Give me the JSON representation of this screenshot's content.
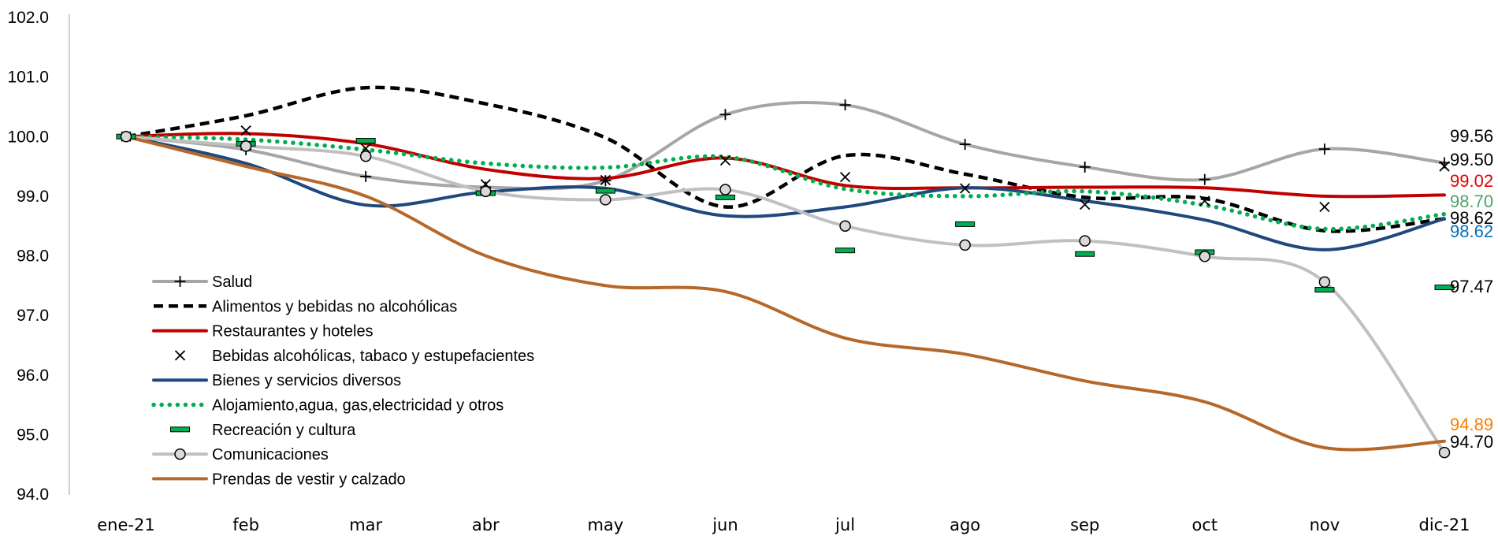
{
  "chart_data": {
    "type": "line",
    "title": "",
    "xlabel": "",
    "ylabel": "",
    "categories": [
      "ene-21",
      "feb",
      "mar",
      "abr",
      "may",
      "jun",
      "jul",
      "ago",
      "sep",
      "oct",
      "nov",
      "dic-21"
    ],
    "yticks": [
      "102.0",
      "101.0",
      "100.0",
      "99.0",
      "98.0",
      "97.0",
      "96.0",
      "95.0",
      "94.0"
    ],
    "ylim": [
      94,
      102
    ],
    "grid": false,
    "legend_position": "bottom-left",
    "series": [
      {
        "name": "Salud",
        "style": "line-marker",
        "marker": "plus",
        "color": "#a6a6a6",
        "values": [
          100.0,
          99.78,
          99.33,
          99.15,
          99.26,
          100.37,
          100.53,
          99.87,
          99.49,
          99.28,
          99.79,
          99.56
        ],
        "end_label": "99.56",
        "end_label_color": "#000000"
      },
      {
        "name": "Alimentos y bebidas no alcohólicas",
        "style": "dashed",
        "color": "#000000",
        "values": [
          100.0,
          100.35,
          100.82,
          100.55,
          99.98,
          98.82,
          99.68,
          99.37,
          98.98,
          98.96,
          98.42,
          98.62
        ],
        "end_label": "98.62",
        "end_label_color": "#000000"
      },
      {
        "name": "Restaurantes y hoteles",
        "style": "line",
        "color": "#c00000",
        "values": [
          100.0,
          100.05,
          99.88,
          99.45,
          99.3,
          99.64,
          99.18,
          99.14,
          99.15,
          99.14,
          99.0,
          99.02
        ],
        "end_label": "99.02",
        "end_label_color": "#e00000"
      },
      {
        "name": "Bebidas alcohólicas, tabaco y estupefacientes",
        "style": "marker",
        "marker": "x",
        "color": "#000000",
        "values": [
          100.0,
          100.1,
          99.8,
          99.2,
          99.27,
          99.6,
          99.32,
          99.13,
          98.86,
          98.92,
          98.82,
          99.5
        ],
        "end_label": "99.50",
        "end_label_color": "#000000"
      },
      {
        "name": "Bienes y servicios diversos",
        "style": "line",
        "color": "#1f497d",
        "values": [
          100.0,
          99.55,
          98.85,
          99.07,
          99.13,
          98.67,
          98.82,
          99.14,
          98.92,
          98.6,
          98.1,
          98.62
        ],
        "end_label": "98.62",
        "end_label_color": "#0070c0"
      },
      {
        "name": "Alojamiento,agua, gas,electricidad y otros",
        "style": "dotted",
        "color": "#00b050",
        "values": [
          100.0,
          99.95,
          99.78,
          99.55,
          99.48,
          99.66,
          99.12,
          99.0,
          99.08,
          98.85,
          98.45,
          98.7
        ],
        "end_label": "98.70",
        "end_label_color": "#4ea26b"
      },
      {
        "name": "Recreación y cultura",
        "style": "marker",
        "marker": "dash",
        "color": "#00b050",
        "values": [
          100.0,
          99.88,
          99.93,
          99.05,
          99.09,
          98.98,
          98.09,
          98.53,
          98.03,
          98.06,
          97.43,
          97.47
        ],
        "end_label": "97.47",
        "end_label_color": "#000000"
      },
      {
        "name": "Comunicaciones",
        "style": "line-marker",
        "marker": "circle",
        "color": "#c0c0c0",
        "values": [
          100.0,
          99.84,
          99.67,
          99.08,
          98.94,
          99.11,
          98.5,
          98.18,
          98.25,
          97.99,
          97.56,
          94.7
        ],
        "end_label": "94.70",
        "end_label_color": "#000000"
      },
      {
        "name": "Prendas de vestir y calzado",
        "style": "line",
        "color": "#b5682a",
        "values": [
          100.0,
          99.5,
          99.0,
          98.0,
          97.5,
          97.4,
          96.62,
          96.35,
          95.9,
          95.55,
          94.78,
          94.89
        ],
        "end_label": "94.89",
        "end_label_color": "#ff7c00"
      }
    ]
  }
}
